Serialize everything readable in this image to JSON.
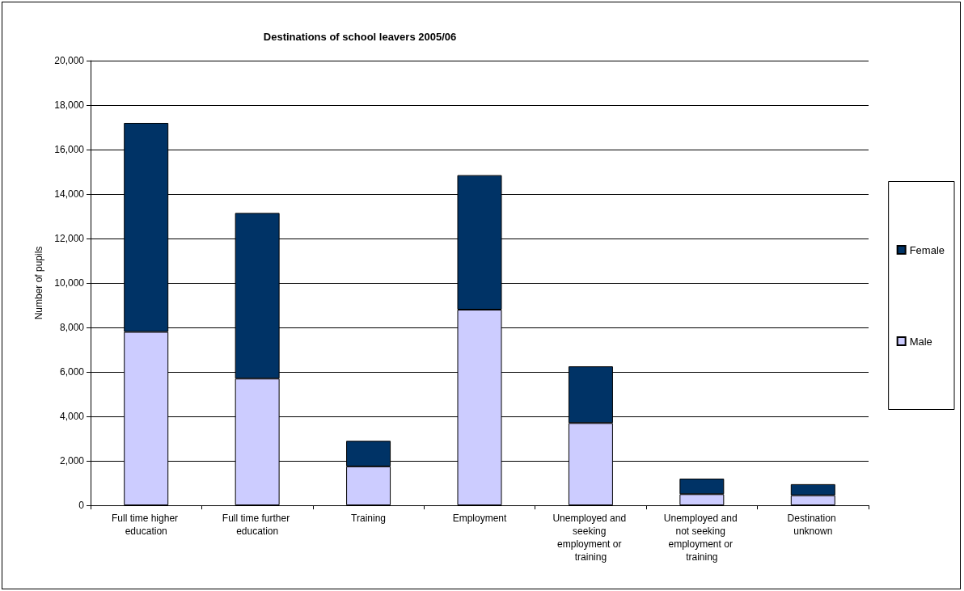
{
  "chart_data": {
    "type": "bar",
    "title": "Destinations of school leavers 2005/06",
    "ylabel": "Number of pupils",
    "categories": [
      "Full time higher education",
      "Full time further education",
      "Training",
      "Employment",
      "Unemployed and seeking employment or training",
      "Unemployed and not seeking employment or training",
      "Destination unknown"
    ],
    "series": [
      {
        "name": "Male",
        "color": "#ccccff",
        "values": [
          7800,
          5700,
          1750,
          8800,
          3700,
          500,
          450
        ]
      },
      {
        "name": "Female",
        "color": "#003366",
        "values": [
          9400,
          7450,
          1150,
          6050,
          2550,
          700,
          500
        ]
      }
    ],
    "stacked": true,
    "ylim": [
      0,
      20000
    ],
    "yticks": [
      0,
      {
        "value": 2000,
        "label": "2,000"
      },
      {
        "value": 4000,
        "label": "4,000"
      },
      {
        "value": 6000,
        "label": "6,000"
      },
      {
        "value": 8000,
        "label": "8,000"
      },
      {
        "value": 10000,
        "label": "10,000"
      },
      {
        "value": 12000,
        "label": "12,000"
      },
      {
        "value": 14000,
        "label": "14,000"
      },
      {
        "value": 16000,
        "label": "16,000"
      },
      {
        "value": 18000,
        "label": "18,000"
      },
      {
        "value": 20000,
        "label": "20,000"
      }
    ],
    "grid": "y",
    "legend": "right"
  }
}
